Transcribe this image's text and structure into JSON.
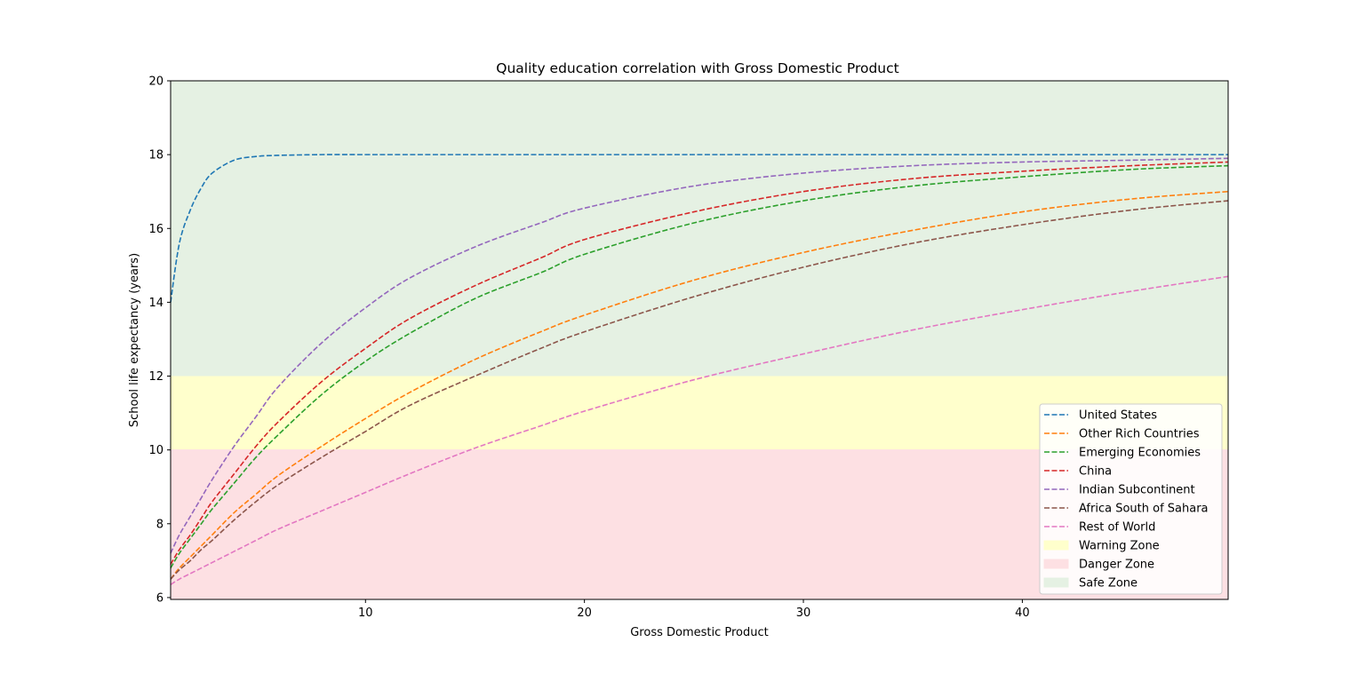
{
  "chart_data": {
    "type": "line",
    "title": "Quality education correlation with Gross Domestic Product",
    "xlabel": "Gross Domestic Product",
    "ylabel": "School life expectancy (years)",
    "xlim": [
      1.1,
      49.4
    ],
    "ylim": [
      5.95,
      20
    ],
    "x_ticks": [
      10,
      20,
      30,
      40
    ],
    "y_ticks": [
      6,
      8,
      10,
      12,
      14,
      16,
      18,
      20
    ],
    "x_tick_labels": [
      "10",
      "20",
      "30",
      "40"
    ],
    "y_tick_labels": [
      "6",
      "8",
      "10",
      "12",
      "14",
      "16",
      "18",
      "20"
    ],
    "grid": false,
    "legend_position": "lower-right",
    "line_style": "dashed",
    "zones": [
      {
        "name": "Warning Zone",
        "y0": 10,
        "y1": 12,
        "color": "#ffffcc"
      },
      {
        "name": "Danger Zone",
        "y0": 5.95,
        "y1": 10,
        "color": "#fde0e3"
      },
      {
        "name": "Safe Zone",
        "y0": 12,
        "y1": 20,
        "color": "#e5f1e3"
      }
    ],
    "x": [
      1,
      1.5,
      2,
      2.5,
      3,
      4,
      5,
      6,
      8,
      10,
      12,
      15,
      18,
      20,
      25,
      30,
      35,
      40,
      45,
      49.4
    ],
    "series": [
      {
        "name": "United States",
        "color": "#1f77b4",
        "values": [
          14.0,
          15.6,
          16.5,
          17.1,
          17.5,
          17.85,
          17.95,
          17.98,
          18.0,
          18.0,
          18.0,
          18.0,
          18.0,
          18.0,
          18.0,
          18.0,
          18.0,
          18.0,
          18.0,
          18.0
        ]
      },
      {
        "name": "Other Rich Countries",
        "color": "#ff7f0e",
        "values": [
          6.5,
          6.8,
          7.1,
          7.4,
          7.7,
          8.3,
          8.8,
          9.3,
          10.1,
          10.85,
          11.55,
          12.45,
          13.2,
          13.65,
          14.6,
          15.35,
          15.95,
          16.45,
          16.8,
          17.0
        ]
      },
      {
        "name": "Emerging Economies",
        "color": "#2ca02c",
        "values": [
          6.8,
          7.2,
          7.6,
          8.0,
          8.4,
          9.1,
          9.8,
          10.4,
          11.5,
          12.4,
          13.15,
          14.1,
          14.8,
          15.3,
          16.15,
          16.75,
          17.15,
          17.4,
          17.6,
          17.7
        ]
      },
      {
        "name": "China",
        "color": "#d62728",
        "values": [
          6.9,
          7.3,
          7.7,
          8.15,
          8.6,
          9.35,
          10.1,
          10.75,
          11.85,
          12.75,
          13.55,
          14.45,
          15.2,
          15.7,
          16.45,
          17.0,
          17.35,
          17.55,
          17.7,
          17.8
        ]
      },
      {
        "name": "Indian Subcontinent",
        "color": "#9467bd",
        "values": [
          7.2,
          7.7,
          8.2,
          8.7,
          9.2,
          10.1,
          10.9,
          11.7,
          12.9,
          13.85,
          14.65,
          15.5,
          16.15,
          16.55,
          17.15,
          17.5,
          17.7,
          17.8,
          17.85,
          17.9
        ]
      },
      {
        "name": "Africa South of Sahara",
        "color": "#8c564b",
        "values": [
          6.5,
          6.75,
          7.0,
          7.3,
          7.55,
          8.1,
          8.6,
          9.05,
          9.8,
          10.5,
          11.2,
          12.0,
          12.75,
          13.2,
          14.15,
          14.95,
          15.6,
          16.1,
          16.5,
          16.75
        ]
      },
      {
        "name": "Rest of World",
        "color": "#e377c2",
        "values": [
          6.35,
          6.5,
          6.65,
          6.8,
          6.95,
          7.25,
          7.55,
          7.85,
          8.35,
          8.85,
          9.35,
          10.05,
          10.65,
          11.05,
          11.9,
          12.6,
          13.25,
          13.8,
          14.3,
          14.7
        ]
      }
    ]
  }
}
